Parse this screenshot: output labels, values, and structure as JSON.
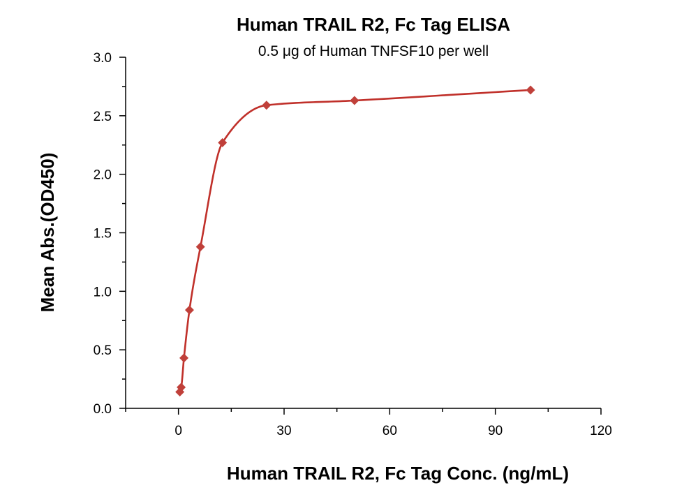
{
  "chart_data": {
    "type": "scatter",
    "title": "Human TRAIL R2, Fc Tag ELISA",
    "subtitle": "0.5 μg of Human TNFSF10 per well",
    "xlabel": "Human TRAIL R2, Fc Tag Conc. (ng/mL)",
    "ylabel": "Mean Abs.(OD450)",
    "xlim": [
      -15,
      120
    ],
    "ylim": [
      0,
      3.0
    ],
    "x_ticks": [
      0,
      30,
      60,
      90,
      120
    ],
    "x_tick_labels": [
      "0",
      "30",
      "60",
      "90",
      "120"
    ],
    "x_minor_ticks": [
      -15,
      15,
      45,
      75,
      105
    ],
    "y_ticks": [
      0,
      0.5,
      1.0,
      1.5,
      2.0,
      2.5,
      3.0
    ],
    "y_tick_labels": [
      "0.0",
      "0.5",
      "1.0",
      "1.5",
      "2.0",
      "2.5",
      "3.0"
    ],
    "y_minor_ticks": [
      0.25,
      0.75,
      1.25,
      1.75,
      2.25,
      2.75
    ],
    "grid": false,
    "series": [
      {
        "x": [
          0.39,
          0.78,
          1.56,
          3.125,
          6.25,
          12.5,
          25,
          50,
          100
        ],
        "y": [
          0.14,
          0.18,
          0.43,
          0.84,
          1.38,
          2.27,
          2.59,
          2.63,
          2.72
        ],
        "marker": "diamond",
        "color": "#c0403a",
        "fit": "four-parameter logistic",
        "fit_color": "#c0302a"
      }
    ]
  }
}
